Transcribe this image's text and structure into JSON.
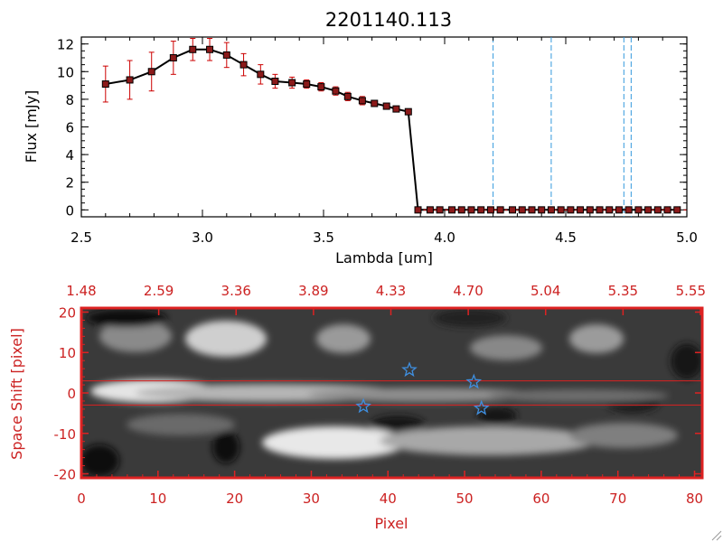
{
  "title": "2201140.113",
  "colors": {
    "spectrum_line": "#000000",
    "error_bar": "#cc0000",
    "marker_fill": "#8b1a1a",
    "vline": "#3399dd",
    "panel2_frame": "#dd2222",
    "panel2_text": "#cc2222",
    "star": "#3f8fe0"
  },
  "chart_data": [
    {
      "type": "line",
      "title": "2201140.113",
      "xlabel": "Lambda [um]",
      "ylabel": "Flux [mJy]",
      "xlim": [
        2.5,
        5.0
      ],
      "ylim": [
        -0.5,
        12.5
      ],
      "x_ticks": [
        "2.5",
        "3.0",
        "3.5",
        "4.0",
        "4.5",
        "5.0"
      ],
      "y_ticks": [
        "0",
        "2",
        "4",
        "6",
        "8",
        "10",
        "12"
      ],
      "series": [
        {
          "x": [
            2.6,
            2.7,
            2.79,
            2.88,
            2.96,
            3.03,
            3.1,
            3.17,
            3.24,
            3.3,
            3.37,
            3.43,
            3.49,
            3.55,
            3.6,
            3.66,
            3.71,
            3.76,
            3.8,
            3.85,
            3.89,
            3.94,
            3.98,
            4.03,
            4.07,
            4.11,
            4.15,
            4.19,
            4.23,
            4.28,
            4.32,
            4.36,
            4.4,
            4.44,
            4.48,
            4.52,
            4.56,
            4.6,
            4.64,
            4.68,
            4.72,
            4.76,
            4.8,
            4.84,
            4.88,
            4.92,
            4.96
          ],
          "y": [
            9.1,
            9.4,
            10.0,
            11.0,
            11.6,
            11.6,
            11.2,
            10.5,
            9.8,
            9.3,
            9.2,
            9.1,
            8.9,
            8.6,
            8.2,
            7.9,
            7.7,
            7.5,
            7.3,
            7.1,
            0,
            0,
            0,
            0,
            0,
            0,
            0,
            0,
            0,
            0,
            0,
            0,
            0,
            0,
            0,
            0,
            0,
            0,
            0,
            0,
            0,
            0,
            0,
            0,
            0,
            0,
            0
          ],
          "yerr": [
            1.3,
            1.4,
            1.4,
            1.2,
            0.8,
            0.8,
            0.9,
            0.8,
            0.7,
            0.5,
            0.4,
            0.3,
            0.3,
            0.3,
            0.3,
            0.3,
            0.2,
            0.2,
            0.2,
            0.2,
            0,
            0,
            0,
            0,
            0,
            0,
            0,
            0,
            0,
            0,
            0,
            0,
            0,
            0,
            0,
            0,
            0,
            0,
            0,
            0,
            0,
            0,
            0,
            0,
            0,
            0,
            0
          ]
        }
      ],
      "vlines": [
        4.2,
        4.44,
        4.74,
        4.77
      ]
    },
    {
      "type": "heatmap",
      "xlabel": "Pixel",
      "ylabel": "Space Shift [pixel]",
      "xlim": [
        0,
        81
      ],
      "ylim": [
        -21,
        21
      ],
      "x_ticks": [
        "0",
        "10",
        "20",
        "30",
        "40",
        "50",
        "60",
        "70",
        "80"
      ],
      "y_ticks": [
        "-20",
        "-10",
        "0",
        "10",
        "20"
      ],
      "top_axis_ticks": [
        "1.48",
        "2.59",
        "3.36",
        "3.89",
        "4.33",
        "4.70",
        "5.04",
        "5.35",
        "5.55"
      ],
      "hlines": [
        3,
        -3
      ],
      "stars": [
        {
          "x": 36.8,
          "y": -3.3
        },
        {
          "x": 42.8,
          "y": 5.7
        },
        {
          "x": 51.2,
          "y": 2.7
        },
        {
          "x": 52.2,
          "y": -3.8
        }
      ]
    }
  ]
}
